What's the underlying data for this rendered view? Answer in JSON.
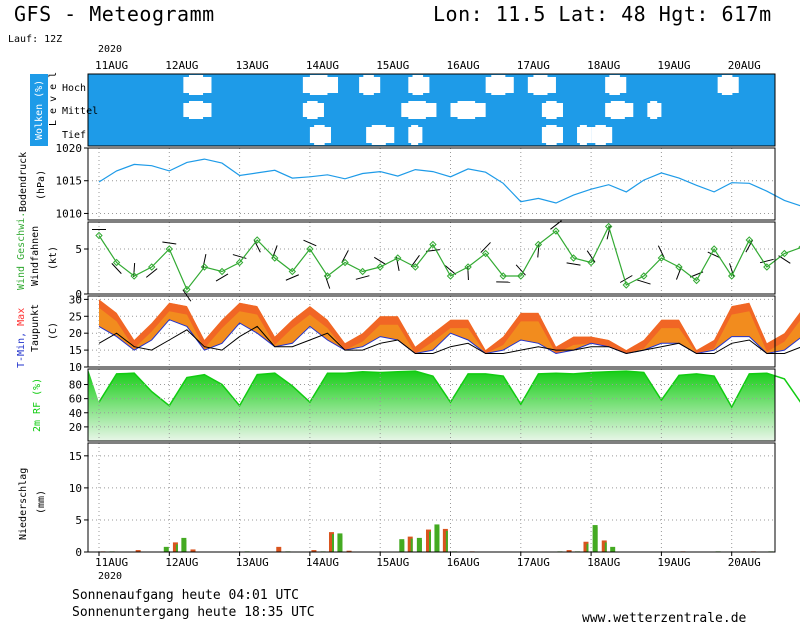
{
  "header": {
    "model_title": "GFS - Meteogramm",
    "location": "Lon: 11.5 Lat: 48 Hgt: 617m",
    "run": "Lauf: 12Z",
    "year": "2020"
  },
  "footer": {
    "sunrise": "Sonnenaufgang heute 04:01 UTC",
    "sunset": "Sonnenuntergang heute 18:35 UTC",
    "site": "www.wetterzentrale.de"
  },
  "colors": {
    "cloud_blue": "#1e9be8",
    "pressure_line": "#1e9be8",
    "wind_green": "#33aa33",
    "tmin": "#2233cc",
    "tmax": "#ff3333",
    "dewpoint": "#000000",
    "rh_green": "#11cc11",
    "precip_rain": "#d9541e",
    "precip_conv": "#44aa22"
  },
  "chart_data": [
    {
      "type": "heatmap",
      "panel": "clouds",
      "ylabel": "Wolken (%)",
      "ylabel2": "L e v e l",
      "levels": [
        "Hoch",
        "Mittel",
        "Tief"
      ],
      "x": [
        "11AUG",
        "12AUG",
        "13AUG",
        "14AUG",
        "15AUG",
        "16AUG",
        "17AUG",
        "18AUG",
        "19AUG",
        "20AUG"
      ],
      "hoch_clear": [
        [
          1.2,
          1.6
        ],
        [
          2.9,
          3.4
        ],
        [
          3.7,
          4.0
        ],
        [
          4.4,
          4.7
        ],
        [
          5.5,
          5.9
        ],
        [
          6.1,
          6.5
        ],
        [
          7.2,
          7.5
        ],
        [
          8.8,
          9.1
        ]
      ],
      "mittel_clear": [
        [
          1.2,
          1.6
        ],
        [
          2.9,
          3.2
        ],
        [
          4.3,
          4.8
        ],
        [
          5.0,
          5.5
        ],
        [
          6.3,
          6.6
        ],
        [
          7.2,
          7.6
        ],
        [
          7.8,
          8.0
        ]
      ],
      "tief_clear": [
        [
          3.0,
          3.3
        ],
        [
          3.8,
          4.2
        ],
        [
          4.4,
          4.6
        ],
        [
          6.3,
          6.6
        ],
        [
          6.8,
          7.0
        ],
        [
          7.0,
          7.3
        ]
      ]
    },
    {
      "type": "line",
      "panel": "pressure",
      "ylabel": "Bodendruck",
      "unit": "(hPa)",
      "ylim": [
        1009,
        1020
      ],
      "yticks": [
        1010,
        1015,
        1020
      ],
      "x_days": [
        0,
        0.25,
        0.5,
        0.75,
        1,
        1.25,
        1.5,
        1.75,
        2,
        2.25,
        2.5,
        2.75,
        3,
        3.25,
        3.5,
        3.75,
        4,
        4.25,
        4.5,
        4.75,
        5,
        5.25,
        5.5,
        5.75,
        6,
        6.25,
        6.5,
        6.75,
        7,
        7.25,
        7.5,
        7.75,
        8,
        8.25,
        8.5,
        8.75,
        9,
        9.25,
        9.5,
        9.75,
        10
      ],
      "values": [
        1014.8,
        1016.5,
        1017.5,
        1017.3,
        1016.5,
        1017.8,
        1018.3,
        1017.7,
        1015.8,
        1016.2,
        1016.6,
        1015.4,
        1015.6,
        1015.9,
        1015.3,
        1016.1,
        1016.4,
        1015.7,
        1016.7,
        1016.4,
        1015.6,
        1016.8,
        1016.3,
        1014.6,
        1011.8,
        1012.3,
        1011.6,
        1012.8,
        1013.7,
        1014.4,
        1013.3,
        1015.1,
        1016.2,
        1015.4,
        1014.3,
        1013.3,
        1014.7,
        1014.6,
        1013.4,
        1012.0,
        1011.1
      ]
    },
    {
      "type": "line",
      "panel": "wind",
      "ylabel": "Wind Geschwi.",
      "ylabel2": "Windfahnen",
      "unit": "(kt)",
      "ylim": [
        0,
        8
      ],
      "yticks": [
        0,
        5
      ],
      "x_days": [
        0,
        0.25,
        0.5,
        0.75,
        1,
        1.25,
        1.5,
        1.75,
        2,
        2.25,
        2.5,
        2.75,
        3,
        3.25,
        3.5,
        3.75,
        4,
        4.25,
        4.5,
        4.75,
        5,
        5.25,
        5.5,
        5.75,
        6,
        6.25,
        6.5,
        6.75,
        7,
        7.25,
        7.5,
        7.75,
        8,
        8.25,
        8.5,
        8.75,
        9,
        9.25,
        9.5,
        9.75,
        10
      ],
      "values": [
        6.5,
        3.5,
        2,
        3,
        5,
        0.5,
        3,
        2.5,
        3.5,
        6,
        4,
        2.5,
        5,
        2,
        3.5,
        2.5,
        3,
        4,
        3,
        5.5,
        2,
        3,
        4.5,
        2,
        2,
        5.5,
        7,
        4,
        3.5,
        7.5,
        1,
        2,
        4,
        3,
        1.5,
        5,
        2,
        6,
        3,
        4.5,
        5.2
      ]
    },
    {
      "type": "area",
      "panel": "temperature",
      "ylabel": "T-Min, Max",
      "ylabel2": "Taupunkt",
      "unit": "(C)",
      "ylim": [
        10,
        31
      ],
      "yticks": [
        10,
        15,
        20,
        25,
        30
      ],
      "x_days": [
        0,
        0.25,
        0.5,
        0.75,
        1,
        1.25,
        1.5,
        1.75,
        2,
        2.25,
        2.5,
        2.75,
        3,
        3.25,
        3.5,
        3.75,
        4,
        4.25,
        4.5,
        4.75,
        5,
        5.25,
        5.5,
        5.75,
        6,
        6.25,
        6.5,
        6.75,
        7,
        7.25,
        7.5,
        7.75,
        8,
        8.25,
        8.5,
        8.75,
        9,
        9.25,
        9.5,
        9.75,
        10
      ],
      "tmax": [
        30,
        26,
        18,
        23,
        29,
        28,
        18,
        24,
        29,
        28,
        19,
        24,
        28,
        24,
        17,
        20,
        25,
        25,
        16,
        20,
        24,
        24,
        15,
        19,
        26,
        26,
        16,
        19,
        19,
        18,
        15,
        18,
        24,
        24,
        15,
        18,
        28,
        29,
        17,
        20,
        27
      ],
      "tmin": [
        22,
        19,
        15,
        18,
        24,
        22,
        15,
        17,
        23,
        20,
        16,
        17,
        22,
        18,
        15,
        16,
        19,
        18,
        14,
        15,
        20,
        18,
        14,
        15,
        18,
        17,
        14,
        15,
        17,
        16,
        14,
        15,
        17,
        17,
        14,
        15,
        19,
        19,
        14,
        15,
        19
      ],
      "dewpoint": [
        17,
        20,
        16,
        15,
        18,
        21,
        16,
        15,
        19,
        22,
        16,
        16,
        18,
        20,
        15,
        15,
        17,
        18,
        14,
        14,
        16,
        17,
        14,
        14,
        15,
        16,
        15,
        15,
        16,
        16,
        14,
        15,
        16,
        17,
        14,
        14,
        17,
        18,
        14,
        14,
        16
      ]
    },
    {
      "type": "area",
      "panel": "humidity",
      "ylabel": "2m RF (%)",
      "ylim": [
        0,
        102
      ],
      "yticks": [
        20,
        40,
        60,
        80
      ],
      "x_days": [
        0,
        0.25,
        0.5,
        0.75,
        1,
        1.25,
        1.5,
        1.75,
        2,
        2.25,
        2.5,
        2.75,
        3,
        3.25,
        3.5,
        3.75,
        4,
        4.25,
        4.5,
        4.75,
        5,
        5.25,
        5.5,
        5.75,
        6,
        6.25,
        6.5,
        6.75,
        7,
        7.25,
        7.5,
        7.75,
        8,
        8.25,
        8.5,
        8.75,
        9,
        9.25,
        9.5,
        9.75,
        10
      ],
      "values": [
        55,
        95,
        96,
        70,
        50,
        90,
        94,
        80,
        50,
        94,
        96,
        78,
        55,
        96,
        96,
        98,
        97,
        98,
        99,
        92,
        55,
        95,
        95,
        92,
        52,
        95,
        96,
        95,
        97,
        98,
        99,
        97,
        58,
        93,
        95,
        92,
        48,
        95,
        96,
        88,
        52
      ]
    },
    {
      "type": "bar",
      "panel": "precipitation",
      "ylabel": "Niederschlag",
      "unit": "(mm)",
      "ylim": [
        0,
        17
      ],
      "yticks": [
        0,
        5,
        10,
        15
      ],
      "x": [
        "11AUG",
        "12AUG",
        "13AUG",
        "14AUG",
        "15AUG",
        "16AUG",
        "17AUG",
        "18AUG",
        "19AUG",
        "20AUG"
      ],
      "bars": [
        {
          "t": 0.05,
          "v": 0.1
        },
        {
          "t": 0.18,
          "v": 0.1
        },
        {
          "t": 0.55,
          "v": 0.3
        },
        {
          "t": 0.95,
          "v": 0.8
        },
        {
          "t": 1.08,
          "v": 1.5
        },
        {
          "t": 1.2,
          "v": 2.2
        },
        {
          "t": 1.33,
          "v": 0.4
        },
        {
          "t": 2.1,
          "v": 0.1
        },
        {
          "t": 2.55,
          "v": 0.8
        },
        {
          "t": 2.68,
          "v": 0.1
        },
        {
          "t": 3.05,
          "v": 0.3
        },
        {
          "t": 3.18,
          "v": 0.1
        },
        {
          "t": 3.3,
          "v": 3.1
        },
        {
          "t": 3.42,
          "v": 2.9
        },
        {
          "t": 3.55,
          "v": 0.2
        },
        {
          "t": 4.3,
          "v": 2.0
        },
        {
          "t": 4.42,
          "v": 2.4
        },
        {
          "t": 4.55,
          "v": 2.2
        },
        {
          "t": 4.68,
          "v": 3.5
        },
        {
          "t": 4.8,
          "v": 4.3
        },
        {
          "t": 4.92,
          "v": 3.6
        },
        {
          "t": 5.05,
          "v": 0.1
        },
        {
          "t": 5.3,
          "v": 0.1
        },
        {
          "t": 6.55,
          "v": 0.1
        },
        {
          "t": 6.68,
          "v": 0.3
        },
        {
          "t": 6.8,
          "v": 0.1
        },
        {
          "t": 6.92,
          "v": 1.6
        },
        {
          "t": 7.05,
          "v": 4.2
        },
        {
          "t": 7.18,
          "v": 1.8
        },
        {
          "t": 7.3,
          "v": 0.8
        },
        {
          "t": 8.3,
          "v": 0.1
        },
        {
          "t": 8.8,
          "v": 0.1
        },
        {
          "t": 9.3,
          "v": 0.1
        },
        {
          "t": 9.55,
          "v": 0.1
        }
      ]
    }
  ]
}
